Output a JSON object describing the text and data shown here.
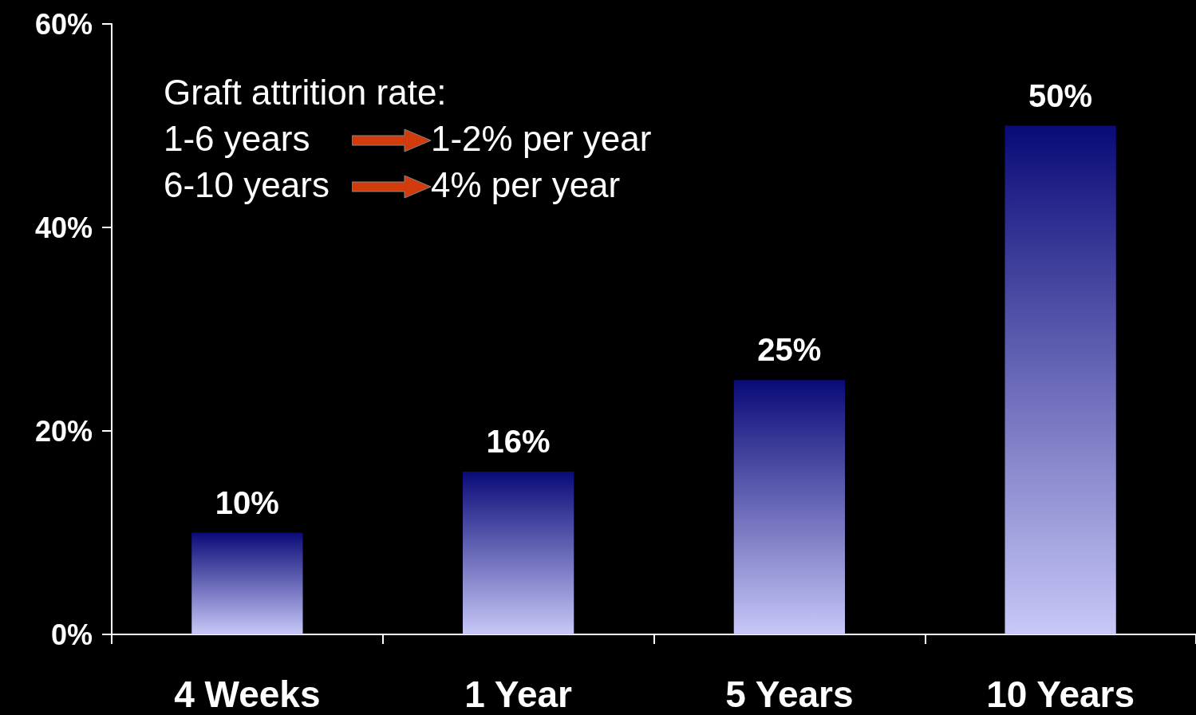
{
  "chart_data": {
    "type": "bar",
    "categories": [
      "4 Weeks",
      "1 Year",
      "5 Years",
      "10 Years"
    ],
    "values": [
      10,
      16,
      25,
      50
    ],
    "value_labels": [
      "10%",
      "16%",
      "25%",
      "50%"
    ],
    "color": "#c8c8f8",
    "ylim": [
      0,
      60
    ],
    "yticks": [
      {
        "value": 0,
        "label": "0%"
      },
      {
        "value": 20,
        "label": "20%"
      },
      {
        "value": 40,
        "label": "40%"
      },
      {
        "value": 60,
        "label": "60%"
      }
    ],
    "grid": false,
    "annotations": [
      "Graft attrition rate:",
      "1-6 years",
      "1-2% per year",
      "6-10 years",
      "4% per year"
    ]
  }
}
